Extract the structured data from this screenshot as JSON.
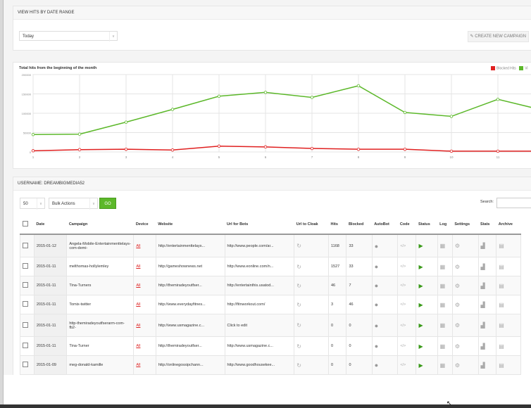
{
  "panel1": {
    "title": "VIEW HITS BY DATE RANGE",
    "date_range": "Today",
    "create_button": "CREATE NEW CAMPAIGN"
  },
  "chart_data": {
    "type": "line",
    "title": "Total hits from the beginning of the month",
    "x": [
      1,
      2,
      3,
      4,
      5,
      6,
      7,
      8,
      9,
      10,
      11,
      12
    ],
    "x_ticks": [
      "1",
      "2",
      "3",
      "4",
      "5",
      "6",
      "7",
      "8",
      "9",
      "10",
      "11"
    ],
    "y_ticks": [
      "200000",
      "150000",
      "100000",
      "50000",
      "0"
    ],
    "ylim": [
      0,
      200000
    ],
    "grid": true,
    "legend_position": "top-right",
    "series": [
      {
        "name": "Blocked Hits",
        "color": "#e02020",
        "values": [
          3000,
          6000,
          7000,
          5000,
          15000,
          13000,
          9000,
          7000,
          7000,
          2000,
          2000,
          2000
        ]
      },
      {
        "name": "Vi",
        "color": "#5cb82a",
        "values": [
          45000,
          46000,
          77000,
          110000,
          144000,
          154000,
          141000,
          171000,
          102000,
          92000,
          136000,
          107000
        ]
      }
    ]
  },
  "table_panel": {
    "title": "USERNAME: DREAMBIGMEDIA52",
    "page_size": "50",
    "bulk_actions": "Bulk Actions",
    "go": "GO",
    "search_label": "Search:",
    "headers": [
      "Date",
      "Campaign",
      "Device",
      "Website",
      "Url for Bots",
      "Url to Cloak",
      "Hits",
      "Blocked",
      "AutoBot",
      "Code",
      "Status",
      "Log",
      "Settings",
      "Stats",
      "Archive"
    ],
    "rows": [
      {
        "date": "2015-01-12",
        "campaign": "Angela-Mobile-Entertainmenttelays-com-demi-",
        "device": "All",
        "website": "http://entertainmenttelays...",
        "bots": "http://www.people.com/ar...",
        "hits": "1168",
        "blocked": "33"
      },
      {
        "date": "2015-01-11",
        "campaign": "melthomas-hollylemley",
        "device": "All",
        "website": "http://gameshownews.net",
        "bots": "http://www.eonline.com/n...",
        "hits": "1527",
        "blocked": "33"
      },
      {
        "date": "2015-01-11",
        "campaign": "Tina-Turners",
        "device": "All",
        "website": "http://themiradeyoutfser...",
        "bots": "http://entertainthis.usatod...",
        "hits": "46",
        "blocked": "7"
      },
      {
        "date": "2015-01-11",
        "campaign": "Tomix-twitter",
        "device": "All",
        "website": "http://www.everydayfitnes...",
        "bots": "http://fitnworkout.com/",
        "hits": "3",
        "blocked": "46"
      },
      {
        "date": "2015-01-11",
        "campaign": "http-themiradeyoutfserarm-com-fb2-",
        "device": "All",
        "website": "http://www.usmagazine.c...",
        "bots": "Click to edit",
        "hits": "0",
        "blocked": "0"
      },
      {
        "date": "2015-01-11",
        "campaign": "Tina-Turner",
        "device": "All",
        "website": "http://themiradeyoutfser...",
        "bots": "http://www.usmagazine.c...",
        "hits": "0",
        "blocked": "0"
      },
      {
        "date": "2015-01-09",
        "campaign": "meg-donald-kamille",
        "device": "All",
        "website": "http://onlinegossipchann...",
        "bots": "http://www.goodhousekee...",
        "hits": "0",
        "blocked": "0"
      }
    ]
  }
}
